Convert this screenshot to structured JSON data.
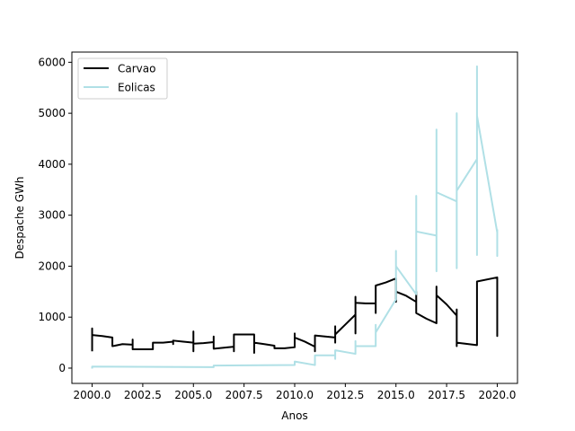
{
  "chart_data": {
    "type": "line",
    "title": "",
    "xlabel": "Anos",
    "ylabel": "Despache GWh",
    "xlim": [
      1999.0,
      2021.0
    ],
    "ylim": [
      -300,
      6200
    ],
    "x_ticks": [
      2000.0,
      2002.5,
      2005.0,
      2007.5,
      2010.0,
      2012.5,
      2015.0,
      2017.5,
      2020.0
    ],
    "x_tick_labels": [
      "2000.0",
      "2002.5",
      "2005.0",
      "2007.5",
      "2010.0",
      "2012.5",
      "2015.0",
      "2017.5",
      "2020.0"
    ],
    "y_ticks": [
      0,
      1000,
      2000,
      3000,
      4000,
      5000,
      6000
    ],
    "y_tick_labels": [
      "0",
      "1000",
      "2000",
      "3000",
      "4000",
      "5000",
      "6000"
    ],
    "grid": false,
    "legend_position": "top-left",
    "series": [
      {
        "name": "Carvao",
        "color": "#000000",
        "points": [
          [
            2000.0,
            330
          ],
          [
            2000.0,
            780
          ],
          [
            2000.0,
            650
          ],
          [
            2000.5,
            630
          ],
          [
            2001.0,
            600
          ],
          [
            2001.0,
            430
          ],
          [
            2001.5,
            470
          ],
          [
            2002.0,
            460
          ],
          [
            2002.0,
            560
          ],
          [
            2002.0,
            370
          ],
          [
            2003.0,
            370
          ],
          [
            2003.0,
            500
          ],
          [
            2003.5,
            500
          ],
          [
            2004.0,
            520
          ],
          [
            2004.0,
            470
          ],
          [
            2004.0,
            540
          ],
          [
            2004.5,
            520
          ],
          [
            2005.0,
            500
          ],
          [
            2005.0,
            330
          ],
          [
            2005.0,
            720
          ],
          [
            2005.0,
            480
          ],
          [
            2005.5,
            490
          ],
          [
            2006.0,
            510
          ],
          [
            2006.0,
            620
          ],
          [
            2006.0,
            380
          ],
          [
            2006.5,
            400
          ],
          [
            2007.0,
            420
          ],
          [
            2007.0,
            330
          ],
          [
            2007.0,
            660
          ],
          [
            2008.0,
            660
          ],
          [
            2008.0,
            300
          ],
          [
            2008.0,
            500
          ],
          [
            2008.5,
            470
          ],
          [
            2009.0,
            440
          ],
          [
            2009.0,
            410
          ],
          [
            2009.0,
            390
          ],
          [
            2009.5,
            390
          ],
          [
            2010.0,
            410
          ],
          [
            2010.0,
            680
          ],
          [
            2010.0,
            600
          ],
          [
            2010.5,
            520
          ],
          [
            2011.0,
            420
          ],
          [
            2011.0,
            330
          ],
          [
            2011.0,
            640
          ],
          [
            2011.5,
            620
          ],
          [
            2012.0,
            600
          ],
          [
            2012.0,
            500
          ],
          [
            2012.0,
            820
          ],
          [
            2012.0,
            660
          ],
          [
            2013.0,
            1050
          ],
          [
            2013.0,
            680
          ],
          [
            2013.0,
            1400
          ],
          [
            2013.0,
            1280
          ],
          [
            2013.5,
            1270
          ],
          [
            2014.0,
            1270
          ],
          [
            2014.0,
            1080
          ],
          [
            2014.0,
            1620
          ],
          [
            2014.5,
            1680
          ],
          [
            2015.0,
            1760
          ],
          [
            2015.0,
            1300
          ],
          [
            2015.0,
            1500
          ],
          [
            2015.5,
            1420
          ],
          [
            2016.0,
            1300
          ],
          [
            2016.0,
            1500
          ],
          [
            2016.0,
            1080
          ],
          [
            2016.5,
            970
          ],
          [
            2017.0,
            880
          ],
          [
            2017.0,
            1600
          ],
          [
            2017.0,
            1430
          ],
          [
            2017.5,
            1250
          ],
          [
            2018.0,
            1030
          ],
          [
            2018.0,
            430
          ],
          [
            2018.0,
            1150
          ],
          [
            2018.0,
            500
          ],
          [
            2019.0,
            450
          ],
          [
            2019.0,
            1700
          ],
          [
            2020.0,
            1780
          ],
          [
            2020.0,
            630
          ],
          [
            2020.0,
            1000
          ]
        ]
      },
      {
        "name": "Eolicas",
        "color": "#b0e0e6",
        "points": [
          [
            2000.0,
            -10
          ],
          [
            2000.0,
            30
          ],
          [
            2006.0,
            20
          ],
          [
            2006.0,
            50
          ],
          [
            2010.0,
            60
          ],
          [
            2010.0,
            130
          ],
          [
            2011.0,
            60
          ],
          [
            2011.0,
            250
          ],
          [
            2012.0,
            250
          ],
          [
            2012.0,
            180
          ],
          [
            2012.0,
            350
          ],
          [
            2013.0,
            280
          ],
          [
            2013.0,
            530
          ],
          [
            2013.0,
            430
          ],
          [
            2014.0,
            430
          ],
          [
            2014.0,
            850
          ],
          [
            2014.0,
            700
          ],
          [
            2015.0,
            1350
          ],
          [
            2015.0,
            2300
          ],
          [
            2015.0,
            2000
          ],
          [
            2016.0,
            1450
          ],
          [
            2016.0,
            3380
          ],
          [
            2016.0,
            2680
          ],
          [
            2017.0,
            2600
          ],
          [
            2017.0,
            4680
          ],
          [
            2017.0,
            1900
          ],
          [
            2017.0,
            3450
          ],
          [
            2018.0,
            3270
          ],
          [
            2018.0,
            5000
          ],
          [
            2018.0,
            1960
          ],
          [
            2018.0,
            3480
          ],
          [
            2019.0,
            4100
          ],
          [
            2019.0,
            5920
          ],
          [
            2019.0,
            2220
          ],
          [
            2019.0,
            4950
          ],
          [
            2020.0,
            2660
          ],
          [
            2020.0,
            2200
          ],
          [
            2020.0,
            2720
          ]
        ]
      }
    ]
  }
}
